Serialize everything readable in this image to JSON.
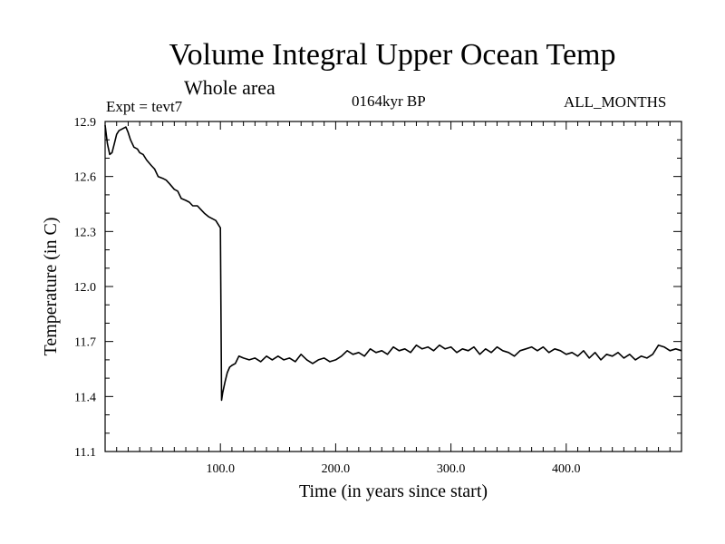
{
  "chart_data": {
    "type": "line",
    "title": "Volume Integral Upper Ocean Temp",
    "subtitle": "Whole area",
    "annotations": {
      "experiment": "Expt = tevt7",
      "period": "0164kyr BP",
      "months": "ALL_MONTHS"
    },
    "xlabel": "Time (in years since start)",
    "ylabel": "Temperature (in C)",
    "xlim": [
      0,
      500
    ],
    "ylim": [
      11.1,
      12.9
    ],
    "x_ticks": [
      100,
      200,
      300,
      400
    ],
    "x_tick_labels": [
      "100.0",
      "200.0",
      "300.0",
      "400.0"
    ],
    "y_ticks": [
      11.1,
      11.4,
      11.7,
      12.0,
      12.3,
      12.6,
      12.9
    ],
    "y_tick_labels": [
      "11.1",
      "11.4",
      "11.7",
      "12.0",
      "12.3",
      "12.6",
      "12.9"
    ],
    "series": [
      {
        "name": "Volume integral upper ocean temperature",
        "x": [
          0,
          2,
          4,
          6,
          8,
          10,
          12,
          15,
          18,
          20,
          22,
          25,
          28,
          30,
          33,
          36,
          40,
          43,
          46,
          50,
          53,
          56,
          60,
          63,
          66,
          70,
          73,
          76,
          80,
          83,
          86,
          90,
          93,
          96,
          99,
          100,
          101,
          102,
          104,
          106,
          108,
          110,
          113,
          116,
          120,
          125,
          130,
          135,
          140,
          145,
          150,
          155,
          160,
          165,
          170,
          175,
          180,
          185,
          190,
          195,
          200,
          205,
          210,
          215,
          220,
          225,
          230,
          235,
          240,
          245,
          250,
          255,
          260,
          265,
          270,
          275,
          280,
          285,
          290,
          295,
          300,
          305,
          310,
          315,
          320,
          325,
          330,
          335,
          340,
          345,
          350,
          355,
          360,
          365,
          370,
          375,
          380,
          385,
          390,
          395,
          400,
          405,
          410,
          415,
          420,
          425,
          430,
          435,
          440,
          445,
          450,
          455,
          460,
          465,
          470,
          475,
          480,
          485,
          490,
          495,
          500
        ],
        "values": [
          12.88,
          12.78,
          12.72,
          12.73,
          12.78,
          12.83,
          12.85,
          12.86,
          12.87,
          12.84,
          12.8,
          12.76,
          12.75,
          12.73,
          12.72,
          12.69,
          12.66,
          12.64,
          12.6,
          12.59,
          12.58,
          12.56,
          12.53,
          12.52,
          12.48,
          12.47,
          12.46,
          12.44,
          12.44,
          12.42,
          12.4,
          12.38,
          12.37,
          12.36,
          12.33,
          12.32,
          11.38,
          11.42,
          11.48,
          11.53,
          11.56,
          11.57,
          11.58,
          11.62,
          11.61,
          11.6,
          11.61,
          11.59,
          11.62,
          11.6,
          11.62,
          11.6,
          11.61,
          11.59,
          11.63,
          11.6,
          11.58,
          11.6,
          11.61,
          11.59,
          11.6,
          11.62,
          11.65,
          11.63,
          11.64,
          11.62,
          11.66,
          11.64,
          11.65,
          11.63,
          11.67,
          11.65,
          11.66,
          11.64,
          11.68,
          11.66,
          11.67,
          11.65,
          11.68,
          11.66,
          11.67,
          11.64,
          11.66,
          11.65,
          11.67,
          11.63,
          11.66,
          11.64,
          11.67,
          11.65,
          11.64,
          11.62,
          11.65,
          11.66,
          11.67,
          11.65,
          11.67,
          11.64,
          11.66,
          11.65,
          11.63,
          11.64,
          11.62,
          11.65,
          11.61,
          11.64,
          11.6,
          11.63,
          11.62,
          11.64,
          11.61,
          11.63,
          11.6,
          11.62,
          11.61,
          11.63,
          11.68,
          11.67,
          11.65,
          11.66,
          11.65
        ]
      }
    ]
  }
}
